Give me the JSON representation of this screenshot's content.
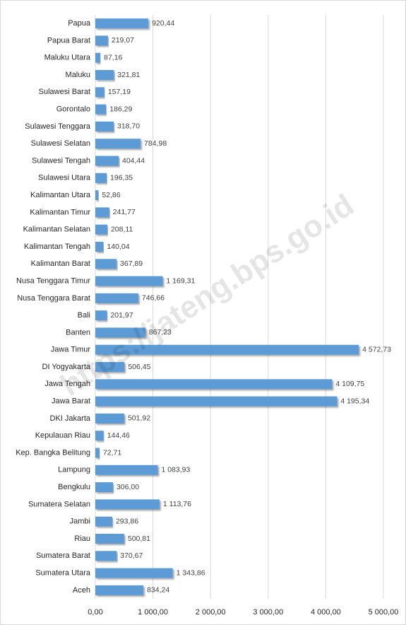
{
  "chart_data": {
    "type": "barh",
    "watermark": "https://jateng.bps.go.id",
    "categories": [
      "Papua",
      "Papua Barat",
      "Maluku Utara",
      "Maluku",
      "Sulawesi Barat",
      "Gorontalo",
      "Sulawesi Tenggara",
      "Sulawesi Selatan",
      "Sulawesi Tengah",
      "Sulawesi Utara",
      "Kalimantan Utara",
      "Kalimantan Timur",
      "Kalimantan Selatan",
      "Kalimantan Tengah",
      "Kalimantan Barat",
      "Nusa Tenggara Timur",
      "Nusa Tenggara Barat",
      "Bali",
      "Banten",
      "Jawa Timur",
      "DI Yogyakarta",
      "Jawa Tengah",
      "Jawa Barat",
      "DKI Jakarta",
      "Kepulauan Riau",
      "Kep. Bangka Belitung",
      "Lampung",
      "Bengkulu",
      "Sumatera Selatan",
      "Jambi",
      "Riau",
      "Sumatera Barat",
      "Sumatera Utara",
      "Aceh"
    ],
    "values": [
      920.44,
      219.07,
      87.16,
      321.81,
      157.19,
      186.29,
      318.7,
      784.98,
      404.44,
      196.35,
      52.86,
      241.77,
      208.11,
      140.04,
      367.89,
      1169.31,
      746.66,
      201.97,
      867.23,
      4572.73,
      506.45,
      4109.75,
      4195.34,
      501.92,
      144.46,
      72.71,
      1083.93,
      306,
      1113.76,
      293.86,
      500.81,
      370.67,
      1343.86,
      834.24
    ],
    "value_labels": [
      "920,44",
      "219,07",
      "87,16",
      "321,81",
      "157,19",
      "186,29",
      "318,70",
      "784,98",
      "404,44",
      "196,35",
      "52,86",
      "241,77",
      "208,11",
      "140,04",
      "367,89",
      "1 169,31",
      "746,66",
      "201,97",
      "867,23",
      "4 572,73",
      "506,45",
      "4 109,75",
      "4 195,34",
      "501,92",
      "144,46",
      "72,71",
      "1 083,93",
      "306,00",
      "1 113,76",
      "293,86",
      "500,81",
      "370,67",
      "1 343,86",
      "834,24"
    ],
    "color": "#5b9bd5",
    "xlim": [
      0,
      5000
    ],
    "xticks": [
      {
        "value": 0,
        "label": "0,00"
      },
      {
        "value": 1000,
        "label": "1 000,00"
      },
      {
        "value": 2000,
        "label": "2 000,00"
      },
      {
        "value": 3000,
        "label": "3 000,00"
      },
      {
        "value": 4000,
        "label": "4 000,00"
      },
      {
        "value": 5000,
        "label": "5 000,00"
      }
    ],
    "grid": true
  }
}
